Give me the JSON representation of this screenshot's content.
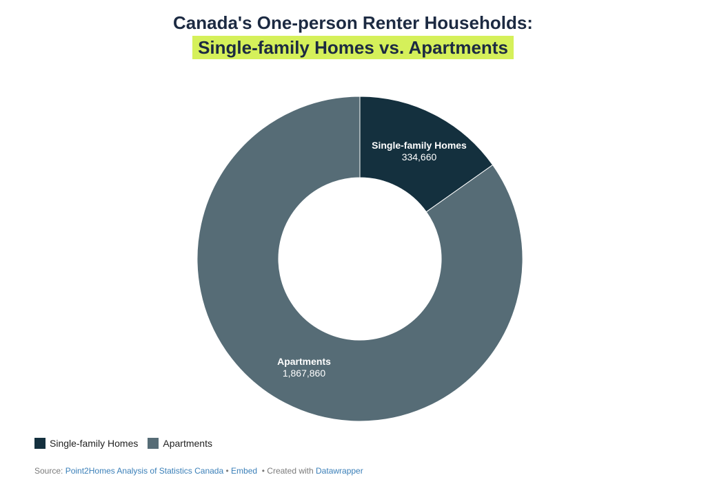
{
  "chart_data": {
    "type": "pie",
    "title": "Canada's One-person Renter Households:",
    "subtitle": "Single-family Homes vs. Apartments",
    "donut": true,
    "categories": [
      "Single-family Homes",
      "Apartments"
    ],
    "values": [
      334660,
      1867860
    ],
    "value_labels": [
      "334,660",
      "1,867,860"
    ],
    "colors": [
      "#14303e",
      "#566c76"
    ],
    "legend_position": "bottom-left",
    "subtitle_highlight": "#d5f05a"
  },
  "legend": {
    "items": [
      {
        "label": "Single-family Homes",
        "color": "#14303e"
      },
      {
        "label": "Apartments",
        "color": "#566c76"
      }
    ]
  },
  "footer": {
    "source_prefix": "Source:",
    "source_link": "Point2Homes Analysis of Statistics Canada",
    "separator1": "•",
    "embed": "Embed",
    "separator2": "•",
    "created_with": "Created with",
    "tool": "Datawrapper"
  }
}
